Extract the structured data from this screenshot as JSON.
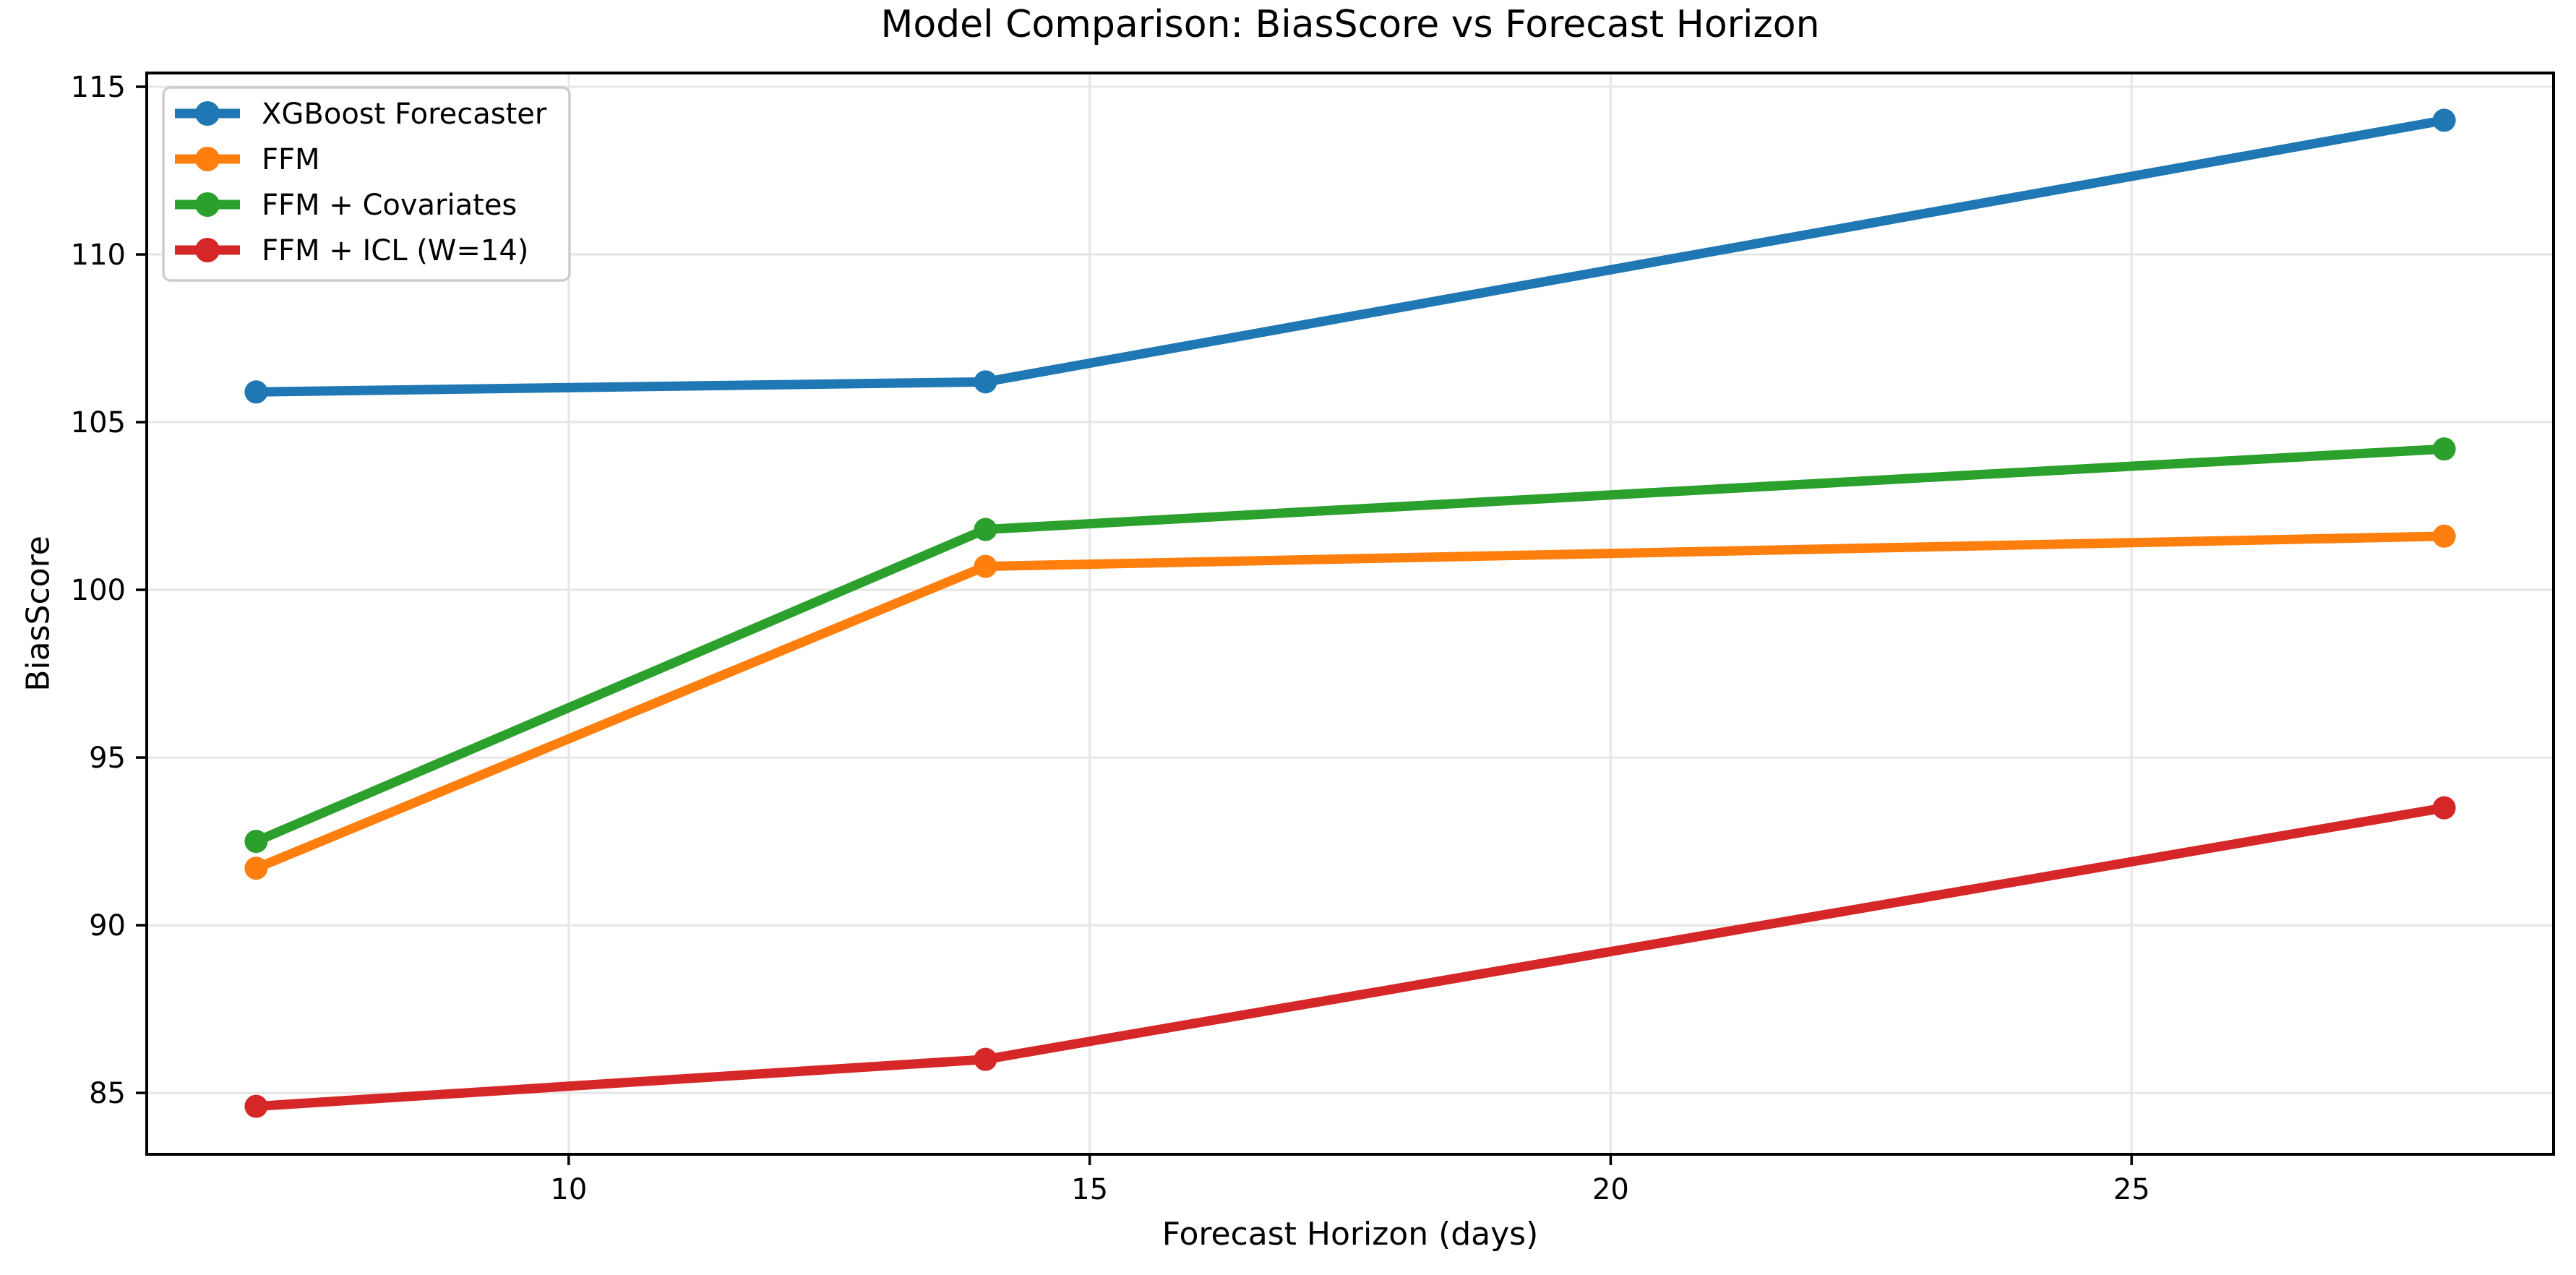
{
  "chart_data": {
    "type": "line",
    "title": "Model Comparison: BiasScore vs Forecast Horizon",
    "xlabel": "Forecast Horizon (days)",
    "ylabel": "BiasScore",
    "x": [
      7,
      14,
      28
    ],
    "series": [
      {
        "name": "XGBoost Forecaster",
        "color": "#1f77b4",
        "values": [
          105.9,
          106.2,
          114.0
        ]
      },
      {
        "name": "FFM",
        "color": "#ff7f0e",
        "values": [
          91.7,
          100.7,
          101.6
        ]
      },
      {
        "name": "FFM + Covariates",
        "color": "#2ca02c",
        "values": [
          92.5,
          101.8,
          104.2
        ]
      },
      {
        "name": "FFM + ICL (W=14)",
        "color": "#d62728",
        "values": [
          84.6,
          86.0,
          93.5
        ]
      }
    ],
    "x_ticks": [
      "10",
      "15",
      "20",
      "25"
    ],
    "x_tick_values": [
      10,
      15,
      20,
      25
    ],
    "y_ticks": [
      "85",
      "90",
      "95",
      "100",
      "105",
      "110",
      "115"
    ],
    "y_tick_values": [
      85,
      90,
      95,
      100,
      105,
      110,
      115
    ],
    "xlim": [
      5.95,
      29.05
    ],
    "ylim": [
      83.17,
      115.41
    ],
    "grid": true,
    "legend_position": "upper left",
    "colors": {
      "background": "#ffffff",
      "spine": "#000000",
      "grid": "#e6e6e6",
      "tick_label": "#000000",
      "legend_border": "#cccccc",
      "legend_background": "#ffffff"
    }
  }
}
